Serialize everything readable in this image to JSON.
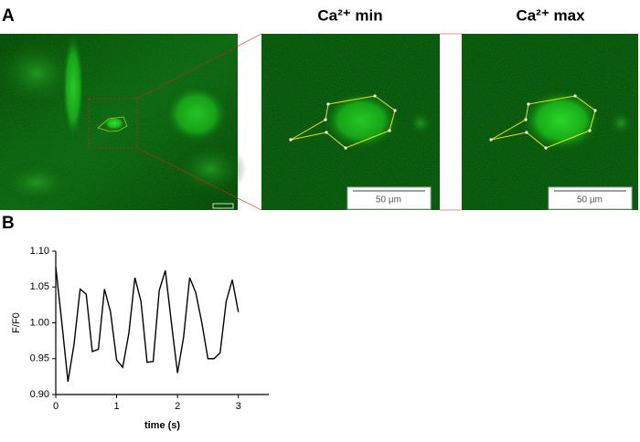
{
  "panel_labels": [
    "A",
    "B"
  ],
  "panel_a": {
    "titles": [
      "Ca²⁺ min",
      "Ca²⁺ max"
    ],
    "scale_bars": [
      "50 µm",
      "50 µm"
    ]
  },
  "chart_data": {
    "type": "line",
    "x": [
      0,
      0.1,
      0.2,
      0.3,
      0.4,
      0.5,
      0.6,
      0.7,
      0.8,
      0.9,
      1.0,
      1.1,
      1.2,
      1.3,
      1.4,
      1.5,
      1.6,
      1.7,
      1.8,
      1.9,
      2.0,
      2.1,
      2.2,
      2.3,
      2.4,
      2.5,
      2.6,
      2.7,
      2.8,
      2.9,
      3.0
    ],
    "values": [
      1.078,
      1.0,
      0.918,
      0.97,
      1.047,
      1.04,
      0.96,
      0.963,
      1.047,
      1.015,
      0.948,
      0.938,
      0.985,
      1.063,
      1.03,
      0.945,
      0.946,
      1.045,
      1.073,
      1.0,
      0.93,
      0.98,
      1.063,
      1.042,
      1.0,
      0.95,
      0.95,
      0.958,
      1.03,
      1.06,
      1.015
    ],
    "color": "#000000",
    "xlabel": "time (s)",
    "ylabel": "F/F0",
    "xlim": [
      0,
      3.5
    ],
    "xticks": [
      0,
      1,
      2,
      3
    ],
    "ylim": [
      0.9,
      1.1
    ],
    "yticks": [
      {
        "value": 0.9,
        "label": "0.90"
      },
      0.95,
      {
        "value": 1,
        "label": "1.00"
      },
      1.05,
      {
        "value": 1.1,
        "label": "1.10"
      }
    ],
    "grid": false
  }
}
